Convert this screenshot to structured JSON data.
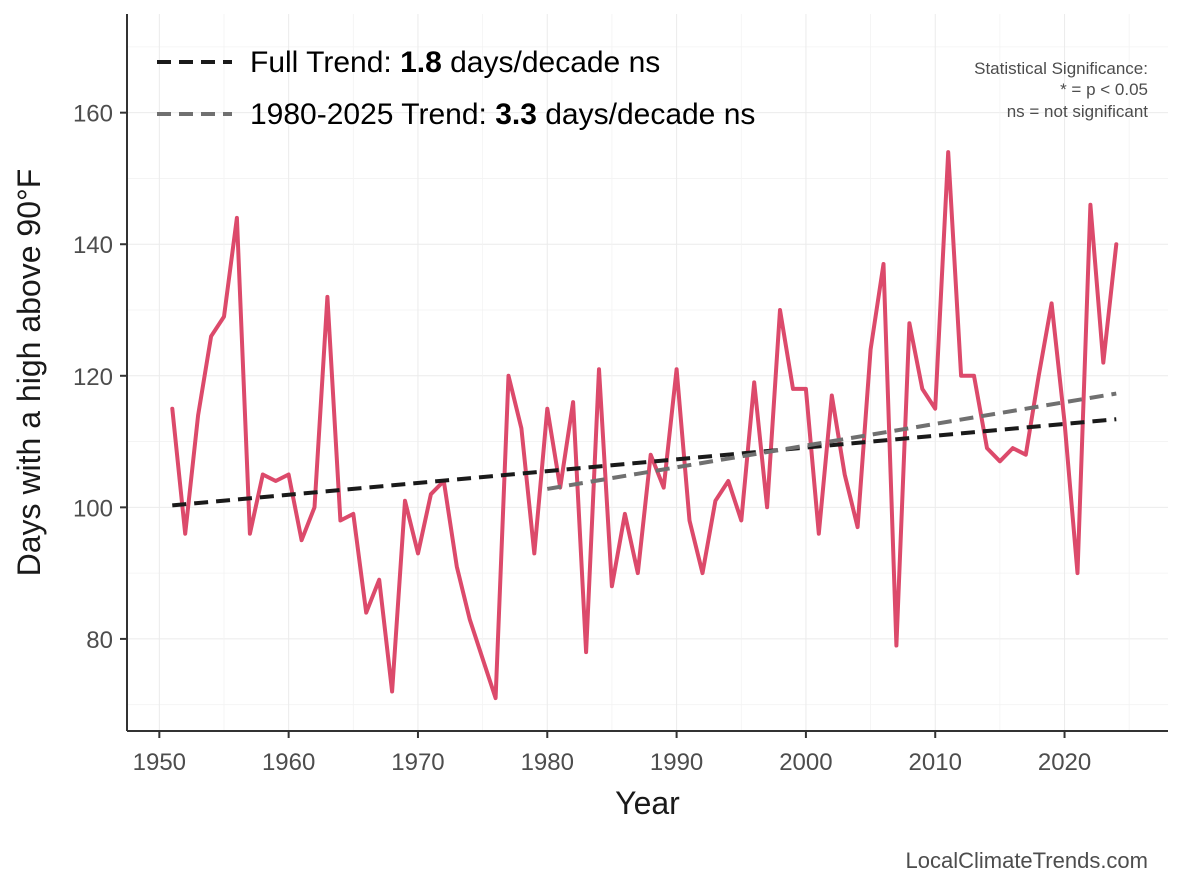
{
  "chart_data": {
    "type": "line",
    "xlabel": "Year",
    "ylabel": "Days with a high above 90°F",
    "xlim": [
      1947.5,
      2028
    ],
    "ylim": [
      66,
      175
    ],
    "x_ticks": [
      1950,
      1960,
      1970,
      1980,
      1990,
      2000,
      2010,
      2020
    ],
    "y_ticks": [
      80,
      100,
      120,
      140,
      160
    ],
    "grid": true,
    "legend_position": "top-left",
    "series": [
      {
        "values": [
          [
            1951,
            115
          ],
          [
            1952,
            96
          ],
          [
            1953,
            114
          ],
          [
            1954,
            126
          ],
          [
            1955,
            129
          ],
          [
            1956,
            144
          ],
          [
            1957,
            96
          ],
          [
            1958,
            105
          ],
          [
            1959,
            104
          ],
          [
            1960,
            105
          ],
          [
            1961,
            95
          ],
          [
            1962,
            100
          ],
          [
            1963,
            132
          ],
          [
            1964,
            98
          ],
          [
            1965,
            99
          ],
          [
            1966,
            84
          ],
          [
            1967,
            89
          ],
          [
            1968,
            72
          ],
          [
            1969,
            101
          ],
          [
            1970,
            93
          ],
          [
            1971,
            102
          ],
          [
            1972,
            104
          ],
          [
            1973,
            91
          ],
          [
            1974,
            83
          ],
          [
            1975,
            77
          ],
          [
            1976,
            71
          ],
          [
            1977,
            120
          ],
          [
            1978,
            112
          ],
          [
            1979,
            93
          ],
          [
            1980,
            115
          ],
          [
            1981,
            103
          ],
          [
            1982,
            116
          ],
          [
            1983,
            78
          ],
          [
            1984,
            121
          ],
          [
            1985,
            88
          ],
          [
            1986,
            99
          ],
          [
            1987,
            90
          ],
          [
            1988,
            108
          ],
          [
            1989,
            103
          ],
          [
            1990,
            121
          ],
          [
            1991,
            98
          ],
          [
            1992,
            90
          ],
          [
            1993,
            101
          ],
          [
            1994,
            104
          ],
          [
            1995,
            98
          ],
          [
            1996,
            119
          ],
          [
            1997,
            100
          ],
          [
            1998,
            130
          ],
          [
            1999,
            118
          ],
          [
            2000,
            118
          ],
          [
            2001,
            96
          ],
          [
            2002,
            117
          ],
          [
            2003,
            105
          ],
          [
            2004,
            97
          ],
          [
            2005,
            124
          ],
          [
            2006,
            137
          ],
          [
            2007,
            79
          ],
          [
            2008,
            128
          ],
          [
            2009,
            118
          ],
          [
            2010,
            115
          ],
          [
            2011,
            154
          ],
          [
            2012,
            120
          ],
          [
            2013,
            120
          ],
          [
            2014,
            109
          ],
          [
            2015,
            107
          ],
          [
            2016,
            109
          ],
          [
            2017,
            108
          ],
          [
            2018,
            120
          ],
          [
            2019,
            131
          ],
          [
            2020,
            113
          ],
          [
            2021,
            90
          ],
          [
            2022,
            146
          ],
          [
            2023,
            122
          ],
          [
            2024,
            140
          ]
        ],
        "color": "#DC4A6B"
      }
    ],
    "trend_lines": [
      {
        "legend_prefix": "Full Trend: ",
        "rate": "1.8",
        "legend_suffix": " days/decade ns",
        "x": [
          1951,
          2024
        ],
        "y": [
          100.3,
          113.4
        ],
        "color": "#1a1a1a"
      },
      {
        "legend_prefix": "1980-2025 Trend: ",
        "rate": "3.3",
        "legend_suffix": " days/decade ns",
        "x": [
          1980,
          2024
        ],
        "y": [
          102.8,
          117.3
        ],
        "color": "#707070"
      }
    ],
    "annotations": {
      "significance_title": "Statistical Significance:",
      "significance_line1": "* = p < 0.05",
      "significance_line2": "ns = not significant"
    }
  },
  "credit": "LocalClimateTrends.com"
}
